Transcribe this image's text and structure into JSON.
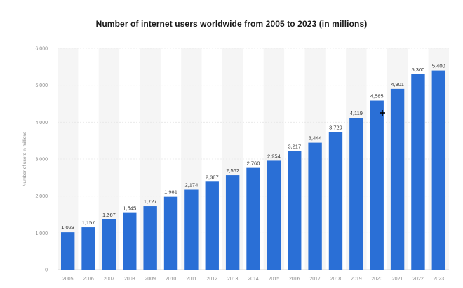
{
  "chart_data": {
    "type": "bar",
    "title": "Number of internet users worldwide from 2005 to 2023 (in millions)",
    "xlabel": "",
    "ylabel": "Number of users in millions",
    "ylim": [
      0,
      6000
    ],
    "yticks": [
      0,
      1000,
      2000,
      3000,
      4000,
      5000,
      6000
    ],
    "ytick_labels": [
      "0",
      "1,000",
      "2,000",
      "3,000",
      "4,000",
      "5,000",
      "6,000"
    ],
    "grid": true,
    "categories": [
      "2005",
      "2006",
      "2007",
      "2008",
      "2009",
      "2010",
      "2011",
      "2012",
      "2013",
      "2014",
      "2015",
      "2016",
      "2017",
      "2018",
      "2019",
      "2020",
      "2021",
      "2022",
      "2023"
    ],
    "values": [
      1023,
      1157,
      1367,
      1545,
      1727,
      1981,
      2174,
      2387,
      2562,
      2760,
      2954,
      3217,
      3444,
      3729,
      4119,
      4585,
      4901,
      5300,
      5400
    ],
    "value_labels": [
      "1,023",
      "1,157",
      "1,367",
      "1,545",
      "1,727",
      "1,981",
      "2,174",
      "2,387",
      "2,562",
      "2,760",
      "2,954",
      "3,217",
      "3,444",
      "3,729",
      "4,119",
      "4,585",
      "4,901",
      "5,300",
      "5,400"
    ],
    "colors": {
      "bar": "#2a6fd6",
      "grid": "#e6e6e6",
      "band": "#f5f5f5",
      "axis": "#cccccc"
    }
  }
}
